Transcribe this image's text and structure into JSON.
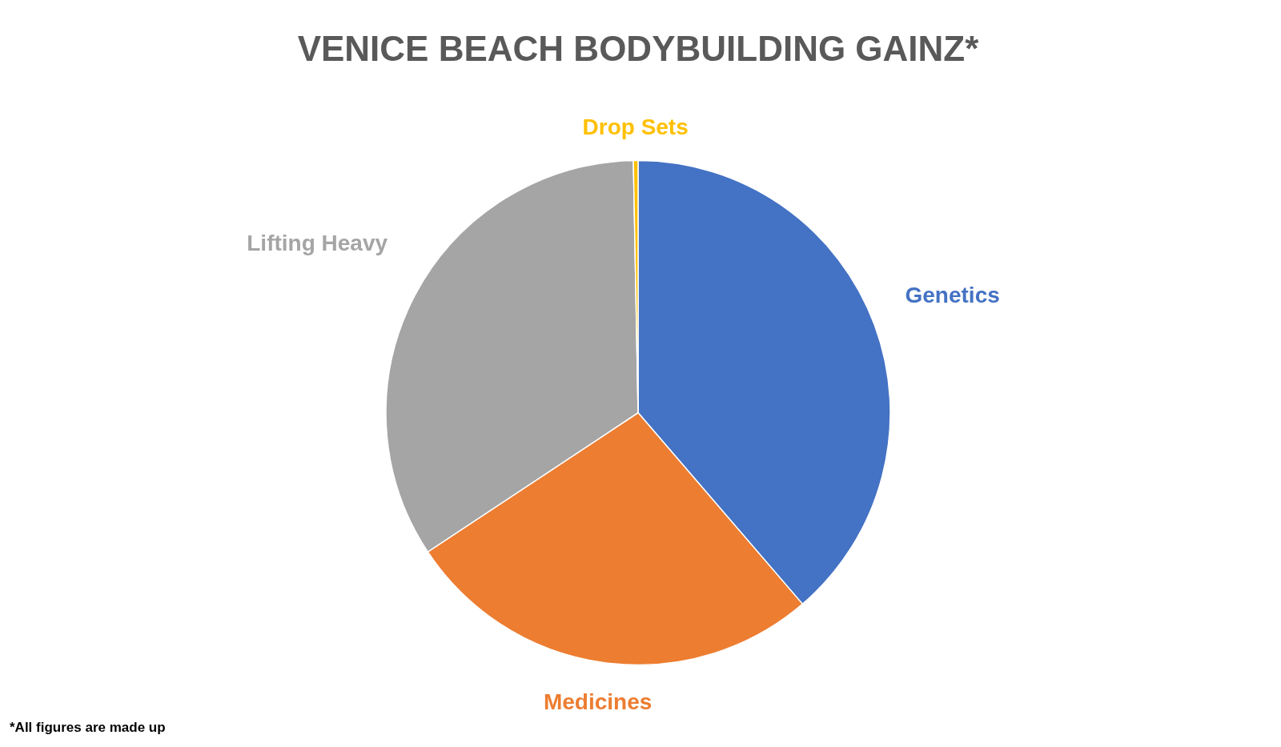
{
  "chart_data": {
    "type": "pie",
    "title": "VENICE BEACH BODYBUILDING GAINZ*",
    "categories": [
      "Genetics",
      "Medicines",
      "Lifting Heavy",
      "Drop Sets"
    ],
    "values": [
      38.7,
      27.0,
      34.0,
      0.3
    ],
    "colors": [
      "#4472c4",
      "#ed7d31",
      "#a5a5a5",
      "#ffc000"
    ],
    "annotations": [
      "*All figures are made up"
    ]
  }
}
